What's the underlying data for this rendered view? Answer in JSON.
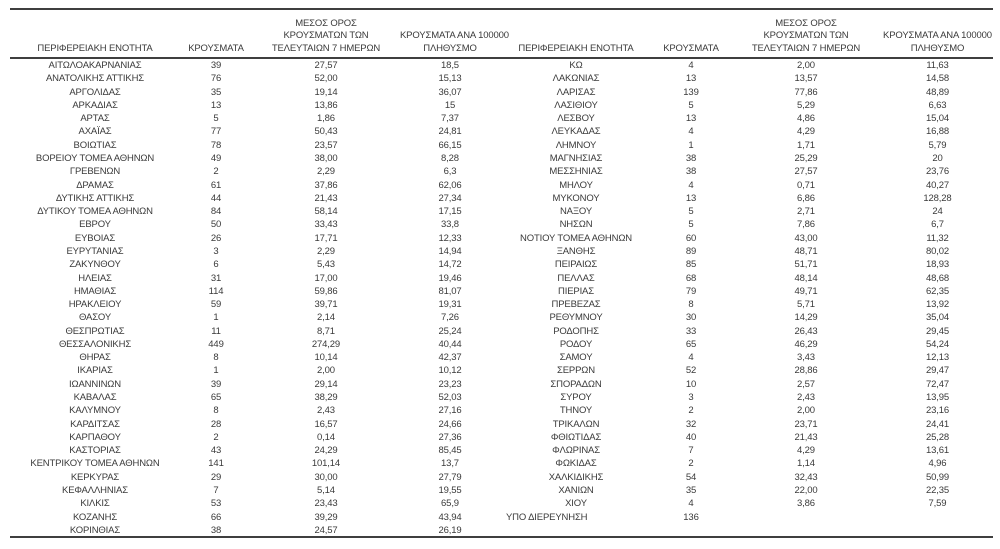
{
  "page": {
    "background": "#ffffff",
    "text_color": "#3a3a3a",
    "border_color": "#3f3f3f"
  },
  "table": {
    "header": {
      "col_region": "ΠΕΡΙΦΕΡΕΙΑΚΗ ΕΝΟΤΗΤΑ",
      "col_cases": "ΚΡΟΥΣΜΑΤΑ",
      "col_avg7_lines": [
        "ΜΕΣΟΣ ΟΡΟΣ",
        "ΚΡΟΥΣΜΑΤΩΝ ΤΩΝ",
        "ΤΕΛΕΥΤΑΙΩΝ 7 ΗΜΕΡΩΝ"
      ],
      "col_per100k_lines": [
        "ΚΡΟΥΣΜΑΤΑ ΑΝΑ 100000",
        "ΠΛΗΘΥΣΜΟ"
      ]
    },
    "left_rows": [
      [
        "ΑΙΤΩΛΟΑΚΑΡΝΑΝΙΑΣ",
        "39",
        "27,57",
        "18,5"
      ],
      [
        "ΑΝΑΤΟΛΙΚΗΣ ΑΤΤΙΚΗΣ",
        "76",
        "52,00",
        "15,13"
      ],
      [
        "ΑΡΓΟΛΙΔΑΣ",
        "35",
        "19,14",
        "36,07"
      ],
      [
        "ΑΡΚΑΔΙΑΣ",
        "13",
        "13,86",
        "15"
      ],
      [
        "ΑΡΤΑΣ",
        "5",
        "1,86",
        "7,37"
      ],
      [
        "ΑΧΑΪΑΣ",
        "77",
        "50,43",
        "24,81"
      ],
      [
        "ΒΟΙΩΤΙΑΣ",
        "78",
        "23,57",
        "66,15"
      ],
      [
        "ΒΟΡΕΙΟΥ ΤΟΜΕΑ ΑΘΗΝΩΝ",
        "49",
        "38,00",
        "8,28"
      ],
      [
        "ΓΡΕΒΕΝΩΝ",
        "2",
        "2,29",
        "6,3"
      ],
      [
        "ΔΡΑΜΑΣ",
        "61",
        "37,86",
        "62,06"
      ],
      [
        "ΔΥΤΙΚΗΣ ΑΤΤΙΚΗΣ",
        "44",
        "21,43",
        "27,34"
      ],
      [
        "ΔΥΤΙΚΟΥ ΤΟΜΕΑ ΑΘΗΝΩΝ",
        "84",
        "58,14",
        "17,15"
      ],
      [
        "ΕΒΡΟΥ",
        "50",
        "33,43",
        "33,8"
      ],
      [
        "ΕΥΒΟΙΑΣ",
        "26",
        "17,71",
        "12,33"
      ],
      [
        "ΕΥΡΥΤΑΝΙΑΣ",
        "3",
        "2,29",
        "14,94"
      ],
      [
        "ΖΑΚΥΝΘΟΥ",
        "6",
        "5,43",
        "14,72"
      ],
      [
        "ΗΛΕΙΑΣ",
        "31",
        "17,00",
        "19,46"
      ],
      [
        "ΗΜΑΘΙΑΣ",
        "114",
        "59,86",
        "81,07"
      ],
      [
        "ΗΡΑΚΛΕΙΟΥ",
        "59",
        "39,71",
        "19,31"
      ],
      [
        "ΘΑΣΟΥ",
        "1",
        "2,14",
        "7,26"
      ],
      [
        "ΘΕΣΠΡΩΤΙΑΣ",
        "11",
        "8,71",
        "25,24"
      ],
      [
        "ΘΕΣΣΑΛΟΝΙΚΗΣ",
        "449",
        "274,29",
        "40,44"
      ],
      [
        "ΘΗΡΑΣ",
        "8",
        "10,14",
        "42,37"
      ],
      [
        "ΙΚΑΡΙΑΣ",
        "1",
        "2,00",
        "10,12"
      ],
      [
        "ΙΩΑΝΝΙΝΩΝ",
        "39",
        "29,14",
        "23,23"
      ],
      [
        "ΚΑΒΑΛΑΣ",
        "65",
        "38,29",
        "52,03"
      ],
      [
        "ΚΑΛΥΜΝΟΥ",
        "8",
        "2,43",
        "27,16"
      ],
      [
        "ΚΑΡΔΙΤΣΑΣ",
        "28",
        "16,57",
        "24,66"
      ],
      [
        "ΚΑΡΠΑΘΟΥ",
        "2",
        "0,14",
        "27,36"
      ],
      [
        "ΚΑΣΤΟΡΙΑΣ",
        "43",
        "24,29",
        "85,45"
      ],
      [
        "ΚΕΝΤΡΙΚΟΥ ΤΟΜΕΑ ΑΘΗΝΩΝ",
        "141",
        "101,14",
        "13,7"
      ],
      [
        "ΚΕΡΚΥΡΑΣ",
        "29",
        "30,00",
        "27,79"
      ],
      [
        "ΚΕΦΑΛΛΗΝΙΑΣ",
        "7",
        "5,14",
        "19,55"
      ],
      [
        "ΚΙΛΚΙΣ",
        "53",
        "23,43",
        "65,9"
      ],
      [
        "ΚΟΖΑΝΗΣ",
        "66",
        "39,29",
        "43,94"
      ],
      [
        "ΚΟΡΙΝΘΙΑΣ",
        "38",
        "24,57",
        "26,19"
      ]
    ],
    "right_rows": [
      [
        "ΚΩ",
        "4",
        "2,00",
        "11,63"
      ],
      [
        "ΛΑΚΩΝΙΑΣ",
        "13",
        "13,57",
        "14,58"
      ],
      [
        "ΛΑΡΙΣΑΣ",
        "139",
        "77,86",
        "48,89"
      ],
      [
        "ΛΑΣΙΘΙΟΥ",
        "5",
        "5,29",
        "6,63"
      ],
      [
        "ΛΕΣΒΟΥ",
        "13",
        "4,86",
        "15,04"
      ],
      [
        "ΛΕΥΚΑΔΑΣ",
        "4",
        "4,29",
        "16,88"
      ],
      [
        "ΛΗΜΝΟΥ",
        "1",
        "1,71",
        "5,79"
      ],
      [
        "ΜΑΓΝΗΣΙΑΣ",
        "38",
        "25,29",
        "20"
      ],
      [
        "ΜΕΣΣΗΝΙΑΣ",
        "38",
        "27,57",
        "23,76"
      ],
      [
        "ΜΗΛΟΥ",
        "4",
        "0,71",
        "40,27"
      ],
      [
        "ΜΥΚΟΝΟΥ",
        "13",
        "6,86",
        "128,28"
      ],
      [
        "ΝΑΞΟΥ",
        "5",
        "2,71",
        "24"
      ],
      [
        "ΝΗΣΩΝ",
        "5",
        "7,86",
        "6,7"
      ],
      [
        "ΝΟΤΙΟΥ ΤΟΜΕΑ ΑΘΗΝΩΝ",
        "60",
        "43,00",
        "11,32"
      ],
      [
        "ΞΑΝΘΗΣ",
        "89",
        "48,71",
        "80,02"
      ],
      [
        "ΠΕΙΡΑΙΩΣ",
        "85",
        "51,71",
        "18,93"
      ],
      [
        "ΠΕΛΛΑΣ",
        "68",
        "48,14",
        "48,68"
      ],
      [
        "ΠΙΕΡΙΑΣ",
        "79",
        "49,71",
        "62,35"
      ],
      [
        "ΠΡΕΒΕΖΑΣ",
        "8",
        "5,71",
        "13,92"
      ],
      [
        "ΡΕΘΥΜΝΟΥ",
        "30",
        "14,29",
        "35,04"
      ],
      [
        "ΡΟΔΟΠΗΣ",
        "33",
        "26,43",
        "29,45"
      ],
      [
        "ΡΟΔΟΥ",
        "65",
        "46,29",
        "54,24"
      ],
      [
        "ΣΑΜΟΥ",
        "4",
        "3,43",
        "12,13"
      ],
      [
        "ΣΕΡΡΩΝ",
        "52",
        "28,86",
        "29,47"
      ],
      [
        "ΣΠΟΡΑΔΩΝ",
        "10",
        "2,57",
        "72,47"
      ],
      [
        "ΣΥΡΟΥ",
        "3",
        "2,43",
        "13,95"
      ],
      [
        "ΤΗΝΟΥ",
        "2",
        "2,00",
        "23,16"
      ],
      [
        "ΤΡΙΚΑΛΩΝ",
        "32",
        "23,71",
        "24,41"
      ],
      [
        "ΦΘΙΩΤΙΔΑΣ",
        "40",
        "21,43",
        "25,28"
      ],
      [
        "ΦΛΩΡΙΝΑΣ",
        "7",
        "4,29",
        "13,61"
      ],
      [
        "ΦΩΚΙΔΑΣ",
        "2",
        "1,14",
        "4,96"
      ],
      [
        "ΧΑΛΚΙΔΙΚΗΣ",
        "54",
        "32,43",
        "50,99"
      ],
      [
        "ΧΑΝΙΩΝ",
        "35",
        "22,00",
        "22,35"
      ],
      [
        "ΧΙΟΥ",
        "4",
        "3,86",
        "7,59"
      ],
      [
        "ΥΠΟ ΔΙΕΡΕΥΝΗΣΗ",
        "136",
        "",
        ""
      ]
    ]
  }
}
